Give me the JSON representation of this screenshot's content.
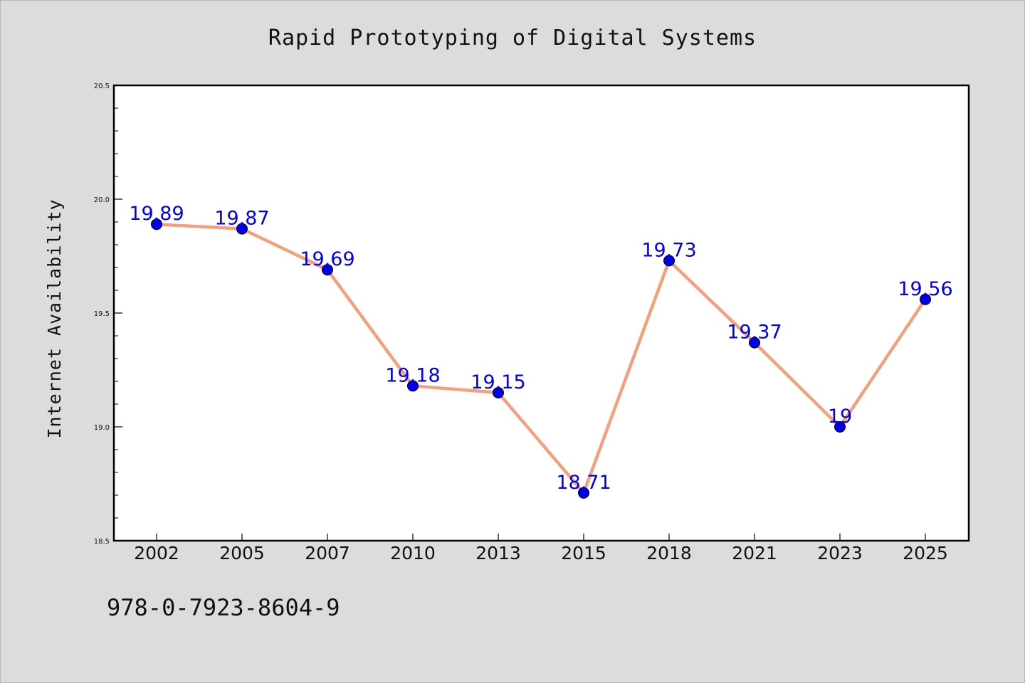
{
  "chart_data": {
    "type": "line",
    "title": "Rapid Prototyping of Digital Systems",
    "xlabel": "",
    "ylabel": "Internet Availability",
    "categories": [
      "2002",
      "2005",
      "2007",
      "2010",
      "2013",
      "2015",
      "2018",
      "2021",
      "2023",
      "2025"
    ],
    "series": [
      {
        "values": [
          19.89,
          19.87,
          19.69,
          19.18,
          19.15,
          18.71,
          19.73,
          19.37,
          19.0,
          19.56
        ],
        "labels": [
          "19.89",
          "19.87",
          "19.69",
          "19.18",
          "19.15",
          "18.71",
          "19.73",
          "19.37",
          "19",
          "19.56"
        ],
        "line_color": "#f4a07a",
        "marker_color": "#0000ee"
      }
    ],
    "ylim": [
      18.5,
      20.5
    ],
    "yticks": [
      "18.5",
      "19.0",
      "19.5",
      "20.0",
      "20.5"
    ],
    "grid": false,
    "legend": "none"
  },
  "footer": {
    "isbn": "978-0-7923-8604-9"
  }
}
